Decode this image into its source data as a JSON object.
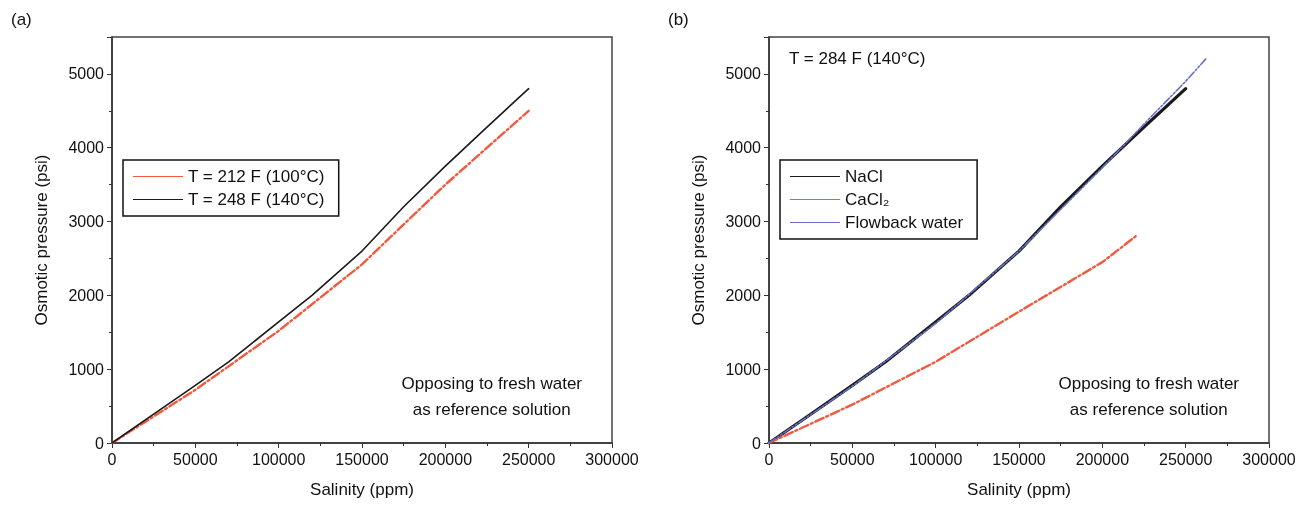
{
  "chart_data": [
    {
      "type": "line",
      "title": "(a)",
      "xlabel": "Salinity (ppm)",
      "ylabel": "Osmotic pressure (psi)",
      "annotations": [
        "Opposing to fresh water\nas reference solution"
      ],
      "x": [
        0,
        25000,
        50000,
        70000,
        100000,
        120000,
        150000,
        175000,
        200000,
        225000,
        250000
      ],
      "series": [
        {
          "name": "T = 212 F (100°C)",
          "color": "#f05a40",
          "line_style": "dashed",
          "x": [
            0,
            50000,
            100000,
            150000,
            200000,
            250000
          ],
          "values": [
            0,
            720,
            1520,
            2420,
            3500,
            4500
          ]
        },
        {
          "name": "T = 248 F (140°C)",
          "color": "#1a1a1a",
          "line_style": "solid",
          "values": [
            0,
            390,
            780,
            1100,
            1640,
            2000,
            2600,
            3200,
            3750,
            4280,
            4800
          ]
        }
      ],
      "xlim": [
        0,
        300000
      ],
      "xticks": [
        0,
        50000,
        100000,
        150000,
        200000,
        250000,
        300000
      ],
      "ylim": [
        0,
        5500
      ],
      "yticks": [
        0,
        1000,
        2000,
        3000,
        4000,
        5000
      ],
      "grid": false,
      "legend": "top left"
    },
    {
      "type": "line",
      "title": "(b)",
      "xlabel": "Salinity (ppm)",
      "ylabel": "Osmotic pressure (psi)",
      "annotations": [
        "T = 284 F (140°C)",
        "Opposing to fresh water\nas reference solution"
      ],
      "x": [
        0,
        25000,
        50000,
        70000,
        100000,
        120000,
        150000,
        175000,
        200000,
        225000,
        250000
      ],
      "series": [
        {
          "name": "NaCl",
          "color": "#1a1a1a",
          "line_style": "solid",
          "values": [
            0,
            390,
            780,
            1100,
            1640,
            2000,
            2600,
            3200,
            3750,
            4280,
            4800
          ]
        },
        {
          "name": "CaCl₂",
          "color": "#f05a40",
          "line_style": "dashed",
          "x": [
            0,
            50000,
            100000,
            150000,
            200000,
            220000
          ],
          "values": [
            0,
            520,
            1100,
            1780,
            2450,
            2800
          ]
        },
        {
          "name": "Flowback water",
          "color": "#6670c8",
          "line_style": "dotted",
          "x": [
            0,
            50000,
            100000,
            150000,
            200000,
            225000,
            250000,
            262000
          ],
          "values": [
            0,
            770,
            1620,
            2600,
            3730,
            4320,
            4900,
            5200
          ]
        }
      ],
      "xlim": [
        0,
        300000
      ],
      "xticks": [
        0,
        50000,
        100000,
        150000,
        200000,
        250000,
        300000
      ],
      "ylim": [
        0,
        5500
      ],
      "yticks": [
        0,
        1000,
        2000,
        3000,
        4000,
        5000
      ],
      "grid": false,
      "legend": "top left"
    }
  ]
}
